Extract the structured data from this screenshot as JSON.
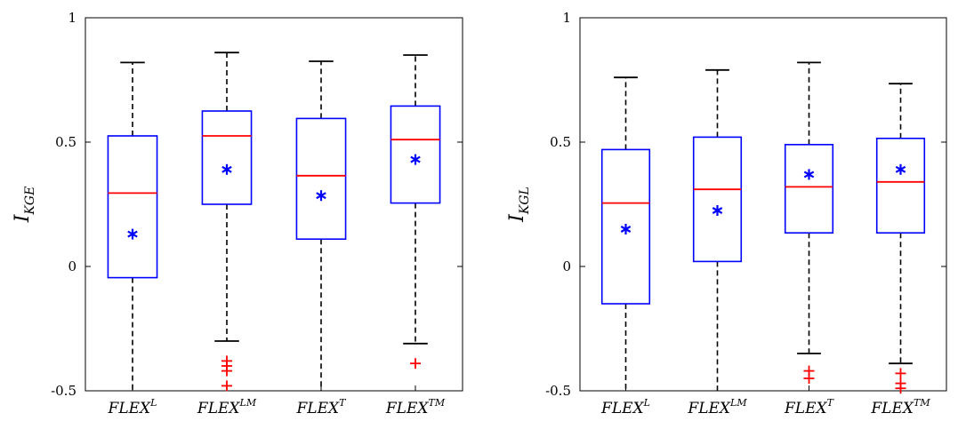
{
  "chart_data": [
    {
      "type": "box",
      "title": "",
      "xlabel": "",
      "ylabel": {
        "base": "I",
        "sub": "KGE"
      },
      "ylim": [
        -0.5,
        1
      ],
      "yticks": [
        {
          "v": -0.5,
          "label": "-0.5"
        },
        {
          "v": 0,
          "label": "0"
        },
        {
          "v": 0.5,
          "label": "0.5"
        },
        {
          "v": 1,
          "label": "1"
        }
      ],
      "grid": false,
      "colors": {
        "box": "#0000ff",
        "median": "#ff0000",
        "mean": "#0000ff",
        "whisker": "#000000",
        "outlier": "#ff0000"
      },
      "categories": [
        {
          "base": "FLEX",
          "sup": "L"
        },
        {
          "base": "FLEX",
          "sup": "LM"
        },
        {
          "base": "FLEX",
          "sup": "T"
        },
        {
          "base": "FLEX",
          "sup": "TM"
        }
      ],
      "boxes": [
        {
          "q1": -0.045,
          "median": 0.295,
          "q3": 0.525,
          "whisker_low": -0.5,
          "whisker_high": 0.82,
          "mean": 0.13,
          "outliers": []
        },
        {
          "q1": 0.25,
          "median": 0.525,
          "q3": 0.625,
          "whisker_low": -0.3,
          "whisker_high": 0.86,
          "mean": 0.39,
          "outliers": [
            -0.38,
            -0.4,
            -0.42,
            -0.48
          ]
        },
        {
          "q1": 0.11,
          "median": 0.365,
          "q3": 0.595,
          "whisker_low": -0.5,
          "whisker_high": 0.825,
          "mean": 0.285,
          "outliers": []
        },
        {
          "q1": 0.255,
          "median": 0.51,
          "q3": 0.645,
          "whisker_low": -0.31,
          "whisker_high": 0.85,
          "mean": 0.43,
          "outliers": [
            -0.39
          ]
        }
      ]
    },
    {
      "type": "box",
      "title": "",
      "xlabel": "",
      "ylabel": {
        "base": "I",
        "sub": "KGL"
      },
      "ylim": [
        -0.5,
        1
      ],
      "yticks": [
        {
          "v": -0.5,
          "label": "-0.5"
        },
        {
          "v": 0,
          "label": "0"
        },
        {
          "v": 0.5,
          "label": "0.5"
        },
        {
          "v": 1,
          "label": "1"
        }
      ],
      "grid": false,
      "colors": {
        "box": "#0000ff",
        "median": "#ff0000",
        "mean": "#0000ff",
        "whisker": "#000000",
        "outlier": "#ff0000"
      },
      "categories": [
        {
          "base": "FLEX",
          "sup": "L"
        },
        {
          "base": "FLEX",
          "sup": "LM"
        },
        {
          "base": "FLEX",
          "sup": "T"
        },
        {
          "base": "FLEX",
          "sup": "TM"
        }
      ],
      "boxes": [
        {
          "q1": -0.15,
          "median": 0.255,
          "q3": 0.47,
          "whisker_low": -0.5,
          "whisker_high": 0.76,
          "mean": 0.15,
          "outliers": []
        },
        {
          "q1": 0.02,
          "median": 0.31,
          "q3": 0.52,
          "whisker_low": -0.5,
          "whisker_high": 0.79,
          "mean": 0.225,
          "outliers": []
        },
        {
          "q1": 0.135,
          "median": 0.32,
          "q3": 0.49,
          "whisker_low": -0.35,
          "whisker_high": 0.82,
          "mean": 0.37,
          "outliers": [
            -0.42,
            -0.45
          ]
        },
        {
          "q1": 0.135,
          "median": 0.34,
          "q3": 0.515,
          "whisker_low": -0.39,
          "whisker_high": 0.735,
          "mean": 0.39,
          "outliers": [
            -0.43,
            -0.47,
            -0.49
          ]
        }
      ]
    }
  ]
}
